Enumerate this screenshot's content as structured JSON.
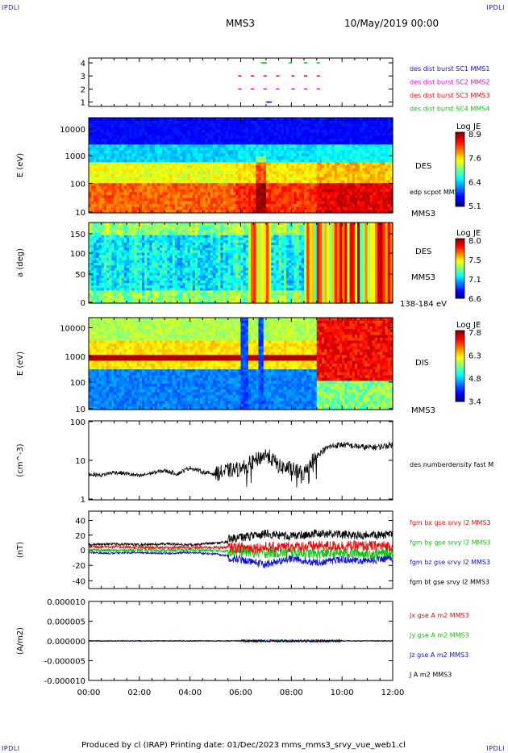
{
  "corner_label": "IPDLI",
  "header": {
    "spacecraft": "MMS3",
    "datetime": "10/May/2019 00:00"
  },
  "footer": "Produced by cl (IRAP)   Printing date: 01/Dec/2023   mms_mms3_srvy_vue_web1.cl",
  "x_axis": {
    "ticks": [
      "00:00",
      "02:00",
      "04:00",
      "06:00",
      "08:00",
      "10:00",
      "12:00"
    ],
    "range_hours": [
      0,
      12
    ]
  },
  "panels": [
    {
      "id": "burst",
      "yticks": [
        "4",
        "3",
        "2",
        "1"
      ],
      "legend": [
        {
          "text": "des dist burst SC1 MMS1",
          "color": "#1010cc"
        },
        {
          "text": "des dist burst SC2 MMS2",
          "color": "#cc10cc"
        },
        {
          "text": "des dist burst SC3 MMS3",
          "color": "#dd1010"
        },
        {
          "text": "des dist burst SC4 MMS4",
          "color": "#10c010"
        }
      ]
    },
    {
      "id": "des-energy",
      "ylabel": "E (eV)",
      "yticks": [
        "10000",
        "1000",
        "100",
        "10"
      ],
      "labels": [
        "DES",
        "edp scpot MMS3",
        "MMS3"
      ],
      "colorbar": {
        "title": "Log JE",
        "ticks": [
          "8.9",
          "7.6",
          "6.4",
          "5.1"
        ]
      }
    },
    {
      "id": "des-pitch",
      "ylabel": "a (deg)",
      "yticks": [
        "150",
        "100",
        "50",
        "0"
      ],
      "labels": [
        "DES",
        "MMS3",
        "138-184 eV"
      ],
      "colorbar": {
        "title": "Log JE",
        "ticks": [
          "8.0",
          "7.5",
          "7.1",
          "6.6"
        ]
      }
    },
    {
      "id": "dis-energy",
      "ylabel": "E (eV)",
      "yticks": [
        "10000",
        "1000",
        "100",
        "10"
      ],
      "labels": [
        "DIS",
        "MMS3"
      ],
      "colorbar": {
        "title": "Log JE",
        "ticks": [
          "7.8",
          "6.3",
          "4.8",
          "3.4"
        ]
      }
    },
    {
      "id": "density",
      "ylabel": "(cm^-3)",
      "yticks": [
        "100",
        "10",
        "1"
      ],
      "labels": [
        "des numberdensity fast M"
      ]
    },
    {
      "id": "fgm",
      "ylabel": "(nT)",
      "yticks": [
        "40",
        "20",
        "0",
        "-20",
        "-40"
      ],
      "legend": [
        {
          "text": "fgm bx gse srvy l2 MMS3",
          "color": "#dd1010"
        },
        {
          "text": "fgm by gse srvy l2 MMS3",
          "color": "#10c010"
        },
        {
          "text": "fgm bz gse srvy l2 MMS3",
          "color": "#1010cc"
        },
        {
          "text": "fgm bt gse srvy l2 MMS3",
          "color": "#000000"
        }
      ]
    },
    {
      "id": "current",
      "ylabel": "(A/m2)",
      "yticks": [
        "0.000010",
        "0.000005",
        "0.000000",
        "-0.000005",
        "-0.000010"
      ],
      "legend": [
        {
          "text": "Jx gse A m2 MMS3",
          "color": "#dd1010"
        },
        {
          "text": "Jy gse A m2 MMS3",
          "color": "#10c010"
        },
        {
          "text": "Jz gse A m2 MMS3",
          "color": "#1010cc"
        },
        {
          "text": "J A m2 MMS3",
          "color": "#000000"
        }
      ]
    }
  ],
  "chart_data": [
    {
      "type": "scatter",
      "ylabel": "",
      "ylim": [
        0.5,
        4.5
      ],
      "series": [
        {
          "name": "des dist burst SC1 MMS1",
          "x": [
            7.0,
            7.05,
            7.1
          ],
          "y": [
            1,
            1,
            1
          ]
        },
        {
          "name": "des dist burst SC2 MMS2",
          "x": [
            5.9,
            6.4,
            6.9,
            7.4,
            8.0,
            8.5,
            9.0
          ],
          "y": [
            2,
            2,
            2,
            2,
            2,
            2,
            2
          ]
        },
        {
          "name": "des dist burst SC3 MMS3",
          "x": [
            5.9,
            6.4,
            6.9,
            7.4,
            8.0,
            8.5,
            9.0
          ],
          "y": [
            3,
            3,
            3,
            3,
            3,
            3,
            3
          ]
        },
        {
          "name": "des dist burst SC4 MMS4",
          "x": [
            6.8,
            6.9,
            7.9,
            8.5,
            9.0
          ],
          "y": [
            4,
            4,
            4,
            4,
            4
          ]
        }
      ]
    },
    {
      "type": "heatmap",
      "ylabel": "E (eV)",
      "ylim": [
        10,
        30000
      ],
      "yscale": "log",
      "colorbar_range": [
        5.1,
        8.9
      ]
    },
    {
      "type": "heatmap",
      "ylabel": "a (deg)",
      "ylim": [
        0,
        180
      ],
      "colorbar_range": [
        6.6,
        8.0
      ]
    },
    {
      "type": "heatmap",
      "ylabel": "E (eV)",
      "ylim": [
        10,
        25000
      ],
      "yscale": "log",
      "colorbar_range": [
        3.4,
        7.8
      ]
    },
    {
      "type": "line",
      "ylabel": "(cm^-3)",
      "yscale": "log",
      "ylim": [
        1,
        100
      ],
      "series": [
        {
          "name": "des numberdensity fast M",
          "x": [
            0,
            0.5,
            1,
            1.5,
            2,
            2.5,
            3,
            3.5,
            4,
            4.5,
            5,
            5.5,
            6,
            6.5,
            7,
            7.5,
            8,
            8.5,
            9,
            9.5,
            10,
            10.5,
            11,
            11.5,
            12
          ],
          "y": [
            4.5,
            4.2,
            5.0,
            4.6,
            4.0,
            4.8,
            5.5,
            4.5,
            6.5,
            5.0,
            4.5,
            5.5,
            6.0,
            9.0,
            14,
            7.0,
            6.0,
            4.5,
            13,
            22,
            25,
            23,
            21,
            22,
            25
          ]
        }
      ]
    },
    {
      "type": "line",
      "ylabel": "(nT)",
      "ylim": [
        -50,
        50
      ],
      "x": [
        0,
        1,
        2,
        3,
        4,
        5,
        6,
        7,
        8,
        9,
        10,
        11,
        12
      ],
      "series": [
        {
          "name": "fgm bx gse srvy l2 MMS3",
          "values": [
            4,
            4,
            3,
            3,
            3,
            3,
            3,
            3,
            4,
            5,
            5,
            5,
            5
          ]
        },
        {
          "name": "fgm by gse srvy l2 MMS3",
          "values": [
            0,
            -1,
            0,
            -1,
            0,
            -1,
            -2,
            -4,
            -3,
            -5,
            -4,
            -5,
            -4
          ]
        },
        {
          "name": "fgm bz gse srvy l2 MMS3",
          "values": [
            -2,
            -3,
            -2,
            -3,
            -2,
            -4,
            -8,
            -14,
            -6,
            -12,
            -8,
            -10,
            -6
          ]
        },
        {
          "name": "fgm bt gse srvy l2 MMS3",
          "values": [
            5,
            6,
            5,
            6,
            5,
            7,
            10,
            15,
            12,
            16,
            14,
            13,
            14
          ]
        }
      ]
    },
    {
      "type": "line",
      "ylabel": "(A/m2)",
      "ylim": [
        -1e-05,
        1e-05
      ],
      "x": [
        0,
        2,
        4,
        6,
        8,
        10,
        12
      ],
      "series": [
        {
          "name": "Jx gse A m2 MMS3",
          "values": [
            0,
            0,
            0,
            0,
            0,
            0,
            0
          ]
        },
        {
          "name": "Jy gse A m2 MMS3",
          "values": [
            0,
            0,
            0,
            0,
            0,
            0,
            0
          ]
        },
        {
          "name": "Jz gse A m2 MMS3",
          "values": [
            0,
            0,
            0,
            0,
            0,
            0,
            0
          ]
        },
        {
          "name": "J A m2 MMS3",
          "values": [
            0,
            0,
            0,
            0,
            0,
            0,
            0
          ]
        }
      ]
    }
  ]
}
